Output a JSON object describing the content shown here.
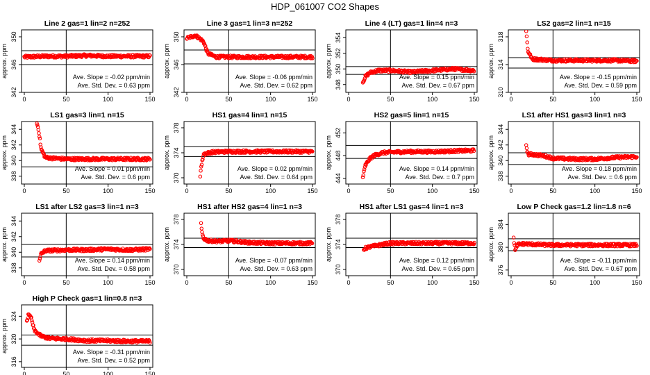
{
  "title": "HDP_061007  CO2 Shapes",
  "colors": {
    "points": "#ff0000",
    "axes": "#000000"
  },
  "chart_data": [
    {
      "type": "scatter",
      "title": "Line 2 gas=1 lin=2 n=252",
      "ylabel": "approx. ppm",
      "xlim": [
        0,
        150
      ],
      "ylim": [
        342,
        351
      ],
      "yticks": [
        342,
        346,
        350
      ],
      "xticks": [
        0,
        50,
        100,
        150
      ],
      "hlines": [
        348.0,
        346.0
      ],
      "vline": 50,
      "slope_text": "Ave. Slope = -0.02  ppm/min",
      "std_text": "Ave. Std. Dev. = 0.63  ppm",
      "series": [
        {
          "x": [
            0,
            25,
            50,
            75,
            100,
            125,
            150
          ],
          "y": [
            347.1,
            347.2,
            347.2,
            347.3,
            347.2,
            347.2,
            347.2
          ]
        }
      ]
    },
    {
      "type": "scatter",
      "title": "Line 3 gas=1 lin=3 n=252",
      "ylabel": "approx. ppm",
      "xlim": [
        0,
        150
      ],
      "ylim": [
        342,
        351
      ],
      "yticks": [
        342,
        346,
        350
      ],
      "xticks": [
        0,
        50,
        100,
        150
      ],
      "hlines": [
        348.1,
        346.1
      ],
      "vline": 50,
      "slope_text": "Ave. Slope = -0.06  ppm/min",
      "std_text": "Ave. Std. Dev. = 0.62  ppm",
      "series": [
        {
          "x": [
            0,
            10,
            15,
            20,
            25,
            35,
            50,
            75,
            100,
            125,
            150
          ],
          "y": [
            349.8,
            350.2,
            349.8,
            349.3,
            347.6,
            347.1,
            347.1,
            347.1,
            347.1,
            347.1,
            347.1
          ]
        }
      ]
    },
    {
      "type": "scatter",
      "title": "Line 4 (LT) gas=1 lin=4 n=3",
      "ylabel": "approx. ppm",
      "xlim": [
        0,
        150
      ],
      "ylim": [
        347,
        355
      ],
      "yticks": [
        348,
        350,
        352,
        354
      ],
      "xticks": [
        0,
        50,
        100,
        150
      ],
      "hlines": [
        350.3,
        349.3
      ],
      "vline": 50,
      "slope_text": "Ave. Slope = 0.15  ppm/min",
      "std_text": "Ave. Std. Dev. = 0.67  ppm",
      "series": [
        {
          "x": [
            17,
            20,
            25,
            35,
            50,
            75,
            100,
            125,
            150
          ],
          "y": [
            348.3,
            349.0,
            349.5,
            349.8,
            349.8,
            349.6,
            349.8,
            350.0,
            349.8
          ]
        }
      ]
    },
    {
      "type": "scatter",
      "title": "LS2 gas=2 lin=1 n=15",
      "ylabel": "approx. ppm",
      "xlim": [
        0,
        150
      ],
      "ylim": [
        310,
        319
      ],
      "yticks": [
        310,
        314,
        318
      ],
      "xticks": [
        0,
        50,
        100,
        150
      ],
      "hlines": [
        315.0,
        313.5
      ],
      "vline": 50,
      "slope_text": "Ave. Slope = -0.15  ppm/min",
      "std_text": "Ave. Std. Dev. = 0.59  ppm",
      "series": [
        {
          "x": [
            18,
            20,
            25,
            50,
            75,
            100,
            125,
            150
          ],
          "y": [
            318.9,
            316.0,
            314.8,
            314.6,
            314.6,
            314.6,
            314.6,
            314.5
          ]
        }
      ]
    },
    {
      "type": "scatter",
      "title": "LS1 gas=3 lin=1 n=15",
      "ylabel": "approx. ppm",
      "xlim": [
        0,
        150
      ],
      "ylim": [
        337,
        345
      ],
      "yticks": [
        338,
        340,
        342,
        344
      ],
      "xticks": [
        0,
        50,
        100,
        150
      ],
      "hlines": [
        341.0,
        339.2
      ],
      "vline": 50,
      "slope_text": "Ave. Slope = 0.01  ppm/min",
      "std_text": "Ave. Std. Dev. = 0.6  ppm",
      "series": [
        {
          "x": [
            15,
            17,
            20,
            25,
            35,
            50,
            75,
            100,
            125,
            150
          ],
          "y": [
            344.8,
            344.0,
            341.5,
            340.4,
            340.3,
            340.2,
            340.2,
            340.2,
            340.2,
            340.2
          ]
        }
      ]
    },
    {
      "type": "scatter",
      "title": "HS1 gas=4 lin=1 n=15",
      "ylabel": "approx. ppm",
      "xlim": [
        0,
        150
      ],
      "ylim": [
        369,
        379
      ],
      "yticks": [
        370,
        374,
        378
      ],
      "xticks": [
        0,
        50,
        100,
        150
      ],
      "hlines": [
        375.0,
        373.4
      ],
      "vline": 50,
      "slope_text": "Ave. Slope = 0.02  ppm/min",
      "std_text": "Ave. Std. Dev. = 0.64  ppm",
      "series": [
        {
          "x": [
            16,
            17,
            20,
            30,
            50,
            75,
            100,
            125,
            150
          ],
          "y": [
            370.4,
            371.6,
            373.8,
            374.1,
            374.2,
            374.2,
            374.2,
            374.2,
            374.2
          ]
        }
      ]
    },
    {
      "type": "scatter",
      "title": "HS2 gas=5 lin=1 n=15",
      "ylabel": "approx. ppm",
      "xlim": [
        0,
        150
      ],
      "ylim": [
        443,
        454
      ],
      "yticks": [
        444,
        448,
        452
      ],
      "xticks": [
        0,
        50,
        100,
        150
      ],
      "hlines": [
        449.8,
        447.5
      ],
      "vline": 50,
      "slope_text": "Ave. Slope = 0.14  ppm/min",
      "std_text": "Ave. Std. Dev. = 0.7  ppm",
      "series": [
        {
          "x": [
            17,
            20,
            25,
            30,
            40,
            50,
            75,
            100,
            125,
            150
          ],
          "y": [
            444.2,
            446.3,
            447.4,
            448.0,
            448.5,
            448.6,
            448.7,
            448.7,
            448.8,
            448.9
          ]
        }
      ]
    },
    {
      "type": "scatter",
      "title": "LS1 after HS1 gas=3 lin=1 n=3",
      "ylabel": "approx. ppm",
      "xlim": [
        0,
        150
      ],
      "ylim": [
        337,
        345
      ],
      "yticks": [
        338,
        340,
        342,
        344
      ],
      "xticks": [
        0,
        50,
        100,
        150
      ],
      "hlines": [
        341.0,
        339.5
      ],
      "vline": 50,
      "slope_text": "Ave. Slope = 0.18  ppm/min",
      "std_text": "Ave. Std. Dev. = 0.6  ppm",
      "series": [
        {
          "x": [
            18,
            20,
            25,
            40,
            50,
            75,
            100,
            125,
            150
          ],
          "y": [
            342.0,
            340.8,
            340.8,
            340.6,
            340.3,
            340.2,
            340.2,
            340.4,
            340.5
          ]
        }
      ]
    },
    {
      "type": "scatter",
      "title": "LS1 after LS2 gas=3 lin=1 n=3",
      "ylabel": "approx. ppm",
      "xlim": [
        0,
        150
      ],
      "ylim": [
        337,
        345
      ],
      "yticks": [
        338,
        340,
        342,
        344
      ],
      "xticks": [
        0,
        50,
        100,
        150
      ],
      "hlines": [
        341.0,
        339.4
      ],
      "vline": 50,
      "slope_text": "Ave. Slope = 0.14  ppm/min",
      "std_text": "Ave. Std. Dev. = 0.58  ppm",
      "series": [
        {
          "x": [
            18,
            20,
            25,
            50,
            75,
            100,
            125,
            150
          ],
          "y": [
            338.8,
            339.8,
            340.2,
            340.3,
            340.3,
            340.4,
            340.3,
            340.4
          ]
        }
      ]
    },
    {
      "type": "scatter",
      "title": "HS1 after HS2 gas=4 lin=1 n=3",
      "ylabel": "approx. ppm",
      "xlim": [
        0,
        150
      ],
      "ylim": [
        369,
        379
      ],
      "yticks": [
        370,
        374,
        378
      ],
      "xticks": [
        0,
        50,
        100,
        150
      ],
      "hlines": [
        375.0,
        373.5
      ],
      "vline": 50,
      "slope_text": "Ave. Slope = -0.07  ppm/min",
      "std_text": "Ave. Std. Dev. = 0.63  ppm",
      "series": [
        {
          "x": [
            17,
            18,
            20,
            25,
            40,
            50,
            75,
            100,
            125,
            150
          ],
          "y": [
            377.2,
            376.0,
            375.0,
            374.6,
            374.5,
            374.6,
            374.3,
            374.2,
            374.2,
            374.2
          ]
        }
      ]
    },
    {
      "type": "scatter",
      "title": "HS1 after LS1 gas=4 lin=1 n=3",
      "ylabel": "approx. ppm",
      "xlim": [
        0,
        150
      ],
      "ylim": [
        369,
        379
      ],
      "yticks": [
        370,
        374,
        378
      ],
      "xticks": [
        0,
        50,
        100,
        150
      ],
      "hlines": [
        375.0,
        373.5
      ],
      "vline": 50,
      "slope_text": "Ave. Slope = 0.12  ppm/min",
      "std_text": "Ave. Std. Dev. = 0.65  ppm",
      "series": [
        {
          "x": [
            18,
            20,
            25,
            40,
            50,
            75,
            100,
            125,
            150
          ],
          "y": [
            373.2,
            373.4,
            373.6,
            374.0,
            374.2,
            374.2,
            374.2,
            374.2,
            374.2
          ]
        }
      ]
    },
    {
      "type": "scatter",
      "title": "Low P Check gas=1.2 lin=1.8 n=6",
      "ylabel": "approx. ppm",
      "xlim": [
        0,
        150
      ],
      "ylim": [
        375,
        386
      ],
      "yticks": [
        376,
        380,
        384
      ],
      "xticks": [
        0,
        50,
        100,
        150
      ],
      "hlines": [
        381.5,
        379.4
      ],
      "vline": 50,
      "slope_text": "Ave. Slope = -0.11  ppm/min",
      "std_text": "Ave. Std. Dev. = 0.67  ppm",
      "series": [
        {
          "x": [
            3,
            5,
            8,
            15,
            30,
            50,
            75,
            100,
            125,
            150
          ],
          "y": [
            381.5,
            379.5,
            380.5,
            380.6,
            380.5,
            380.4,
            380.4,
            380.4,
            380.4,
            380.4
          ]
        }
      ]
    },
    {
      "type": "scatter",
      "title": "High P Check gas=1 lin=0.8 n=3",
      "ylabel": "approx. ppm",
      "xlim": [
        0,
        150
      ],
      "ylim": [
        315,
        326
      ],
      "yticks": [
        316,
        320,
        324
      ],
      "xticks": [
        0,
        50,
        100,
        150
      ],
      "hlines": [
        320.7,
        318.9
      ],
      "vline": 50,
      "slope_text": "Ave. Slope = -0.31  ppm/min",
      "std_text": "Ave. Std. Dev. = 0.52  ppm",
      "series": [
        {
          "x": [
            3,
            5,
            8,
            12,
            20,
            30,
            50,
            75,
            100,
            125,
            150
          ],
          "y": [
            323.2,
            324.2,
            323.8,
            321.5,
            320.5,
            320.1,
            320.0,
            319.7,
            319.7,
            319.6,
            319.6
          ]
        }
      ]
    }
  ]
}
